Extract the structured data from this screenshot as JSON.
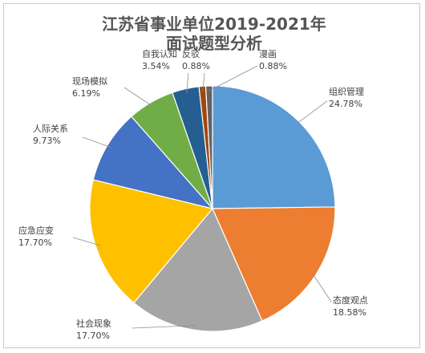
{
  "chart_data": {
    "type": "pie",
    "title": "江苏省事业单位2019-2021年",
    "subtitle": "面试题型分析",
    "slices": [
      {
        "name": "组织管理",
        "pct_label": "24.78%",
        "value": 24.78,
        "color": "#5b9bd5"
      },
      {
        "name": "态度观点",
        "pct_label": "18.58%",
        "value": 18.58,
        "color": "#ed7d31"
      },
      {
        "name": "社会现象",
        "pct_label": "17.70%",
        "value": 17.7,
        "color": "#a5a5a5"
      },
      {
        "name": "应急应变",
        "pct_label": "17.70%",
        "value": 17.7,
        "color": "#ffc000"
      },
      {
        "name": "人际关系",
        "pct_label": "9.73%",
        "value": 9.73,
        "color": "#4472c4"
      },
      {
        "name": "现场模拟",
        "pct_label": "6.19%",
        "value": 6.19,
        "color": "#70ad47"
      },
      {
        "name": "自我认知",
        "pct_label": "3.54%",
        "value": 3.54,
        "color": "#255e91"
      },
      {
        "name": "反驳",
        "pct_label": "0.88%",
        "value": 0.88,
        "color": "#9e480e"
      },
      {
        "name": "漫画",
        "pct_label": "0.88%",
        "value": 0.88,
        "color": "#636363"
      }
    ],
    "legend": "none"
  }
}
